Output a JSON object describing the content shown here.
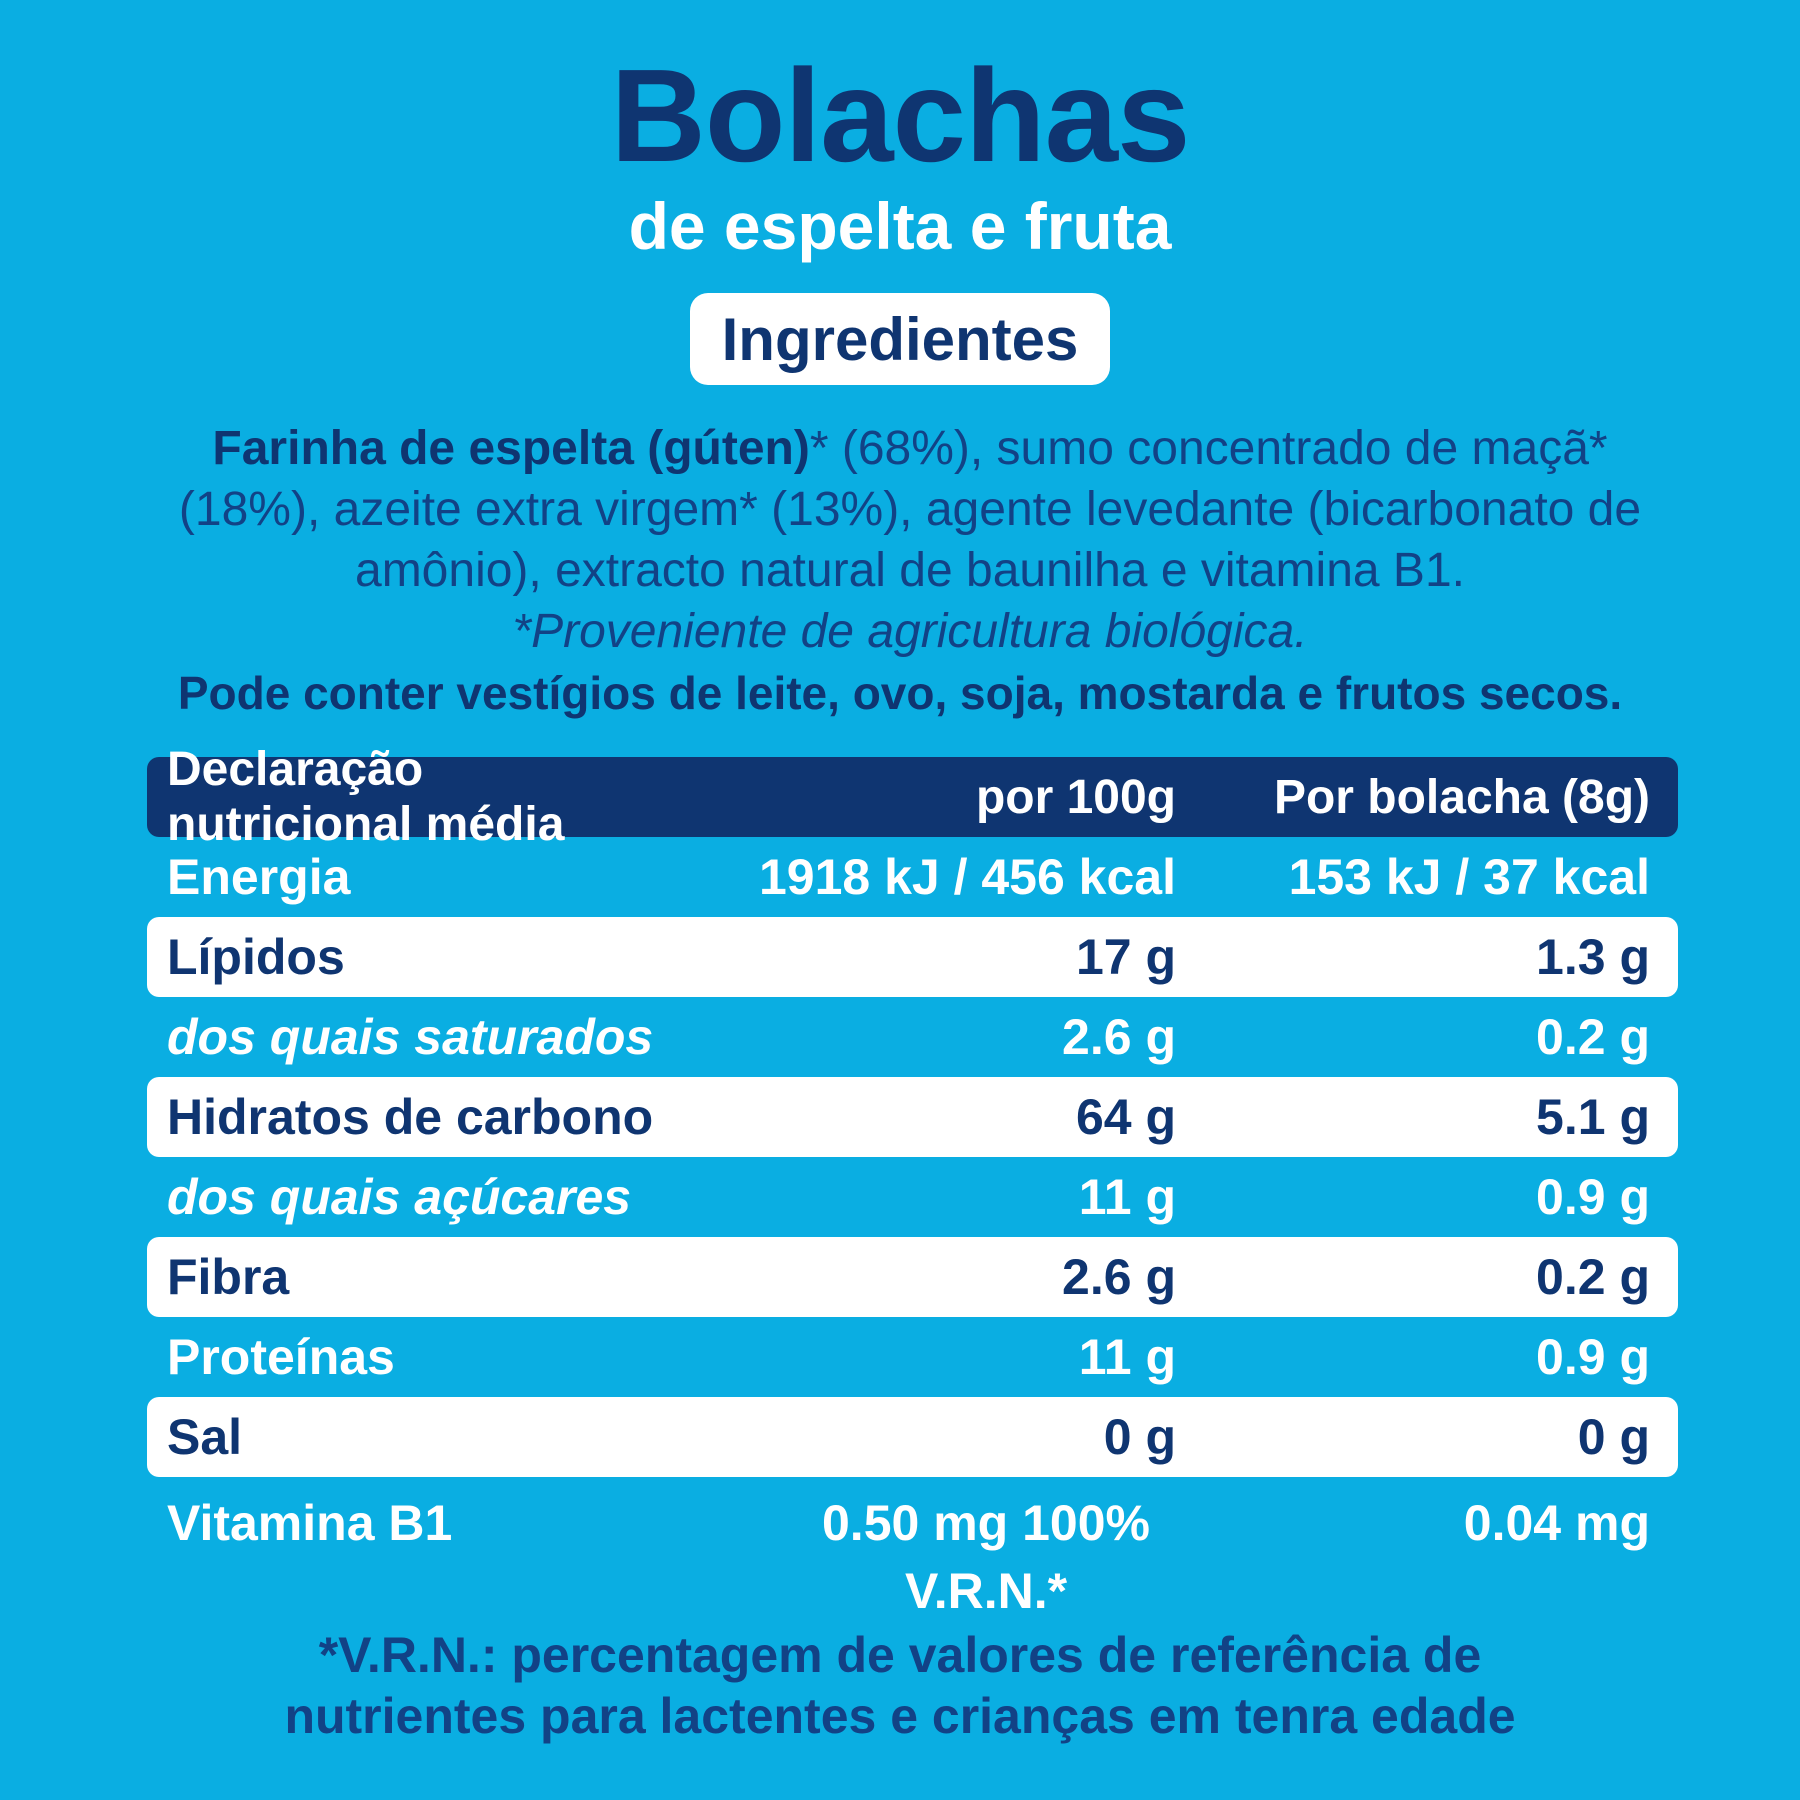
{
  "header": {
    "title": "Bolachas",
    "subtitle": "de espelta e fruta"
  },
  "ingredients": {
    "heading": "Ingredientes",
    "lead": "Farinha de espelta (gúten)",
    "text": "* (68%), sumo concentrado de maçã* (18%), azeite extra virgem* (13%), agente levedante (bicarbonato de amônio), extracto natural de baunilha e vitamina B1.",
    "note": "*Proveniente de agricultura biológica.",
    "allergens": "Pode conter vestígios de leite, ovo, soja, mostarda e frutos secos."
  },
  "table": {
    "header": [
      "Declaração nutricional média",
      "por 100g",
      "Por bolacha (8g)"
    ],
    "rows": [
      [
        "Energia",
        "1918 kJ / 456 kcal",
        "153 kJ / 37 kcal"
      ],
      [
        "Lípidos",
        "17 g",
        "1.3 g"
      ],
      [
        "dos quais saturados",
        "2.6 g",
        "0.2 g"
      ],
      [
        "Hidratos de carbono",
        "64 g",
        "5.1 g"
      ],
      [
        "dos quais açúcares",
        "11 g",
        "0.9 g"
      ],
      [
        "Fibra",
        "2.6 g",
        "0.2 g"
      ],
      [
        "Proteínas",
        "11 g",
        "0.9 g"
      ],
      [
        "Sal",
        "0 g",
        "0 g"
      ],
      [
        "Vitamina B1",
        "0.50 mg 100% V.R.N.*",
        "0.04 mg"
      ]
    ]
  },
  "footnote": {
    "lead": "*V.R.N.:",
    "text": " percentagem de valores de referência de nutrientes para lactentes e crianças em tenra edade"
  }
}
